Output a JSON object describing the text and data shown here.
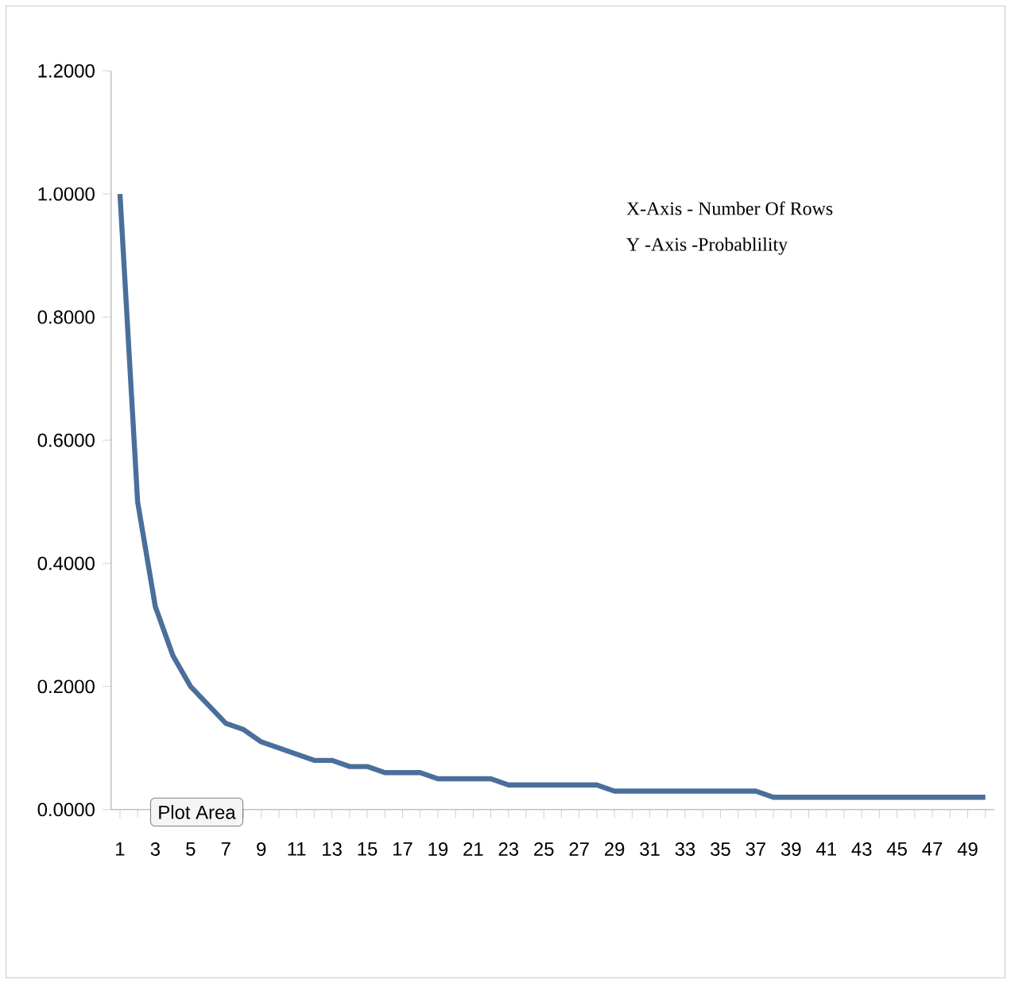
{
  "chart_data": {
    "type": "line",
    "categories": [
      "1",
      null,
      "3",
      null,
      "5",
      null,
      "7",
      null,
      "9",
      null,
      "11",
      null,
      "13",
      null,
      "15",
      null,
      "17",
      null,
      "19",
      null,
      "21",
      null,
      "23",
      null,
      "25",
      null,
      "27",
      null,
      "29",
      null,
      "31",
      null,
      "33",
      null,
      "35",
      null,
      "37",
      null,
      "39",
      null,
      "41",
      null,
      "43",
      null,
      "45",
      null,
      "47",
      null,
      "49",
      null
    ],
    "values": [
      1.0,
      0.5,
      0.33,
      0.25,
      0.2,
      0.17,
      0.14,
      0.13,
      0.11,
      0.1,
      0.09,
      0.08,
      0.08,
      0.07,
      0.07,
      0.06,
      0.06,
      0.06,
      0.05,
      0.05,
      0.05,
      0.05,
      0.04,
      0.04,
      0.04,
      0.04,
      0.04,
      0.04,
      0.03,
      0.03,
      0.03,
      0.03,
      0.03,
      0.03,
      0.03,
      0.03,
      0.03,
      0.02,
      0.02,
      0.02,
      0.02,
      0.02,
      0.02,
      0.02,
      0.02,
      0.02,
      0.02,
      0.02,
      0.02,
      0.02
    ],
    "color": "#4a6f9a",
    "ylim": [
      0,
      1.2
    ],
    "yticks": [
      {
        "value": 0,
        "label": "0.0000"
      },
      {
        "value": 0.2,
        "label": "0.2000"
      },
      {
        "value": 0.4,
        "label": "0.4000"
      },
      {
        "value": 0.6,
        "label": "0.6000"
      },
      {
        "value": 0.8,
        "label": "0.8000"
      },
      {
        "value": 1.0,
        "label": "1.0000"
      },
      {
        "value": 1.2,
        "label": "1.2000"
      }
    ],
    "annotations": [
      "X-Axis - Number Of Rows",
      "Y -Axis -Probablility",
      "Plot Area"
    ],
    "grid": false,
    "marker": "none",
    "line_style": "solid"
  }
}
